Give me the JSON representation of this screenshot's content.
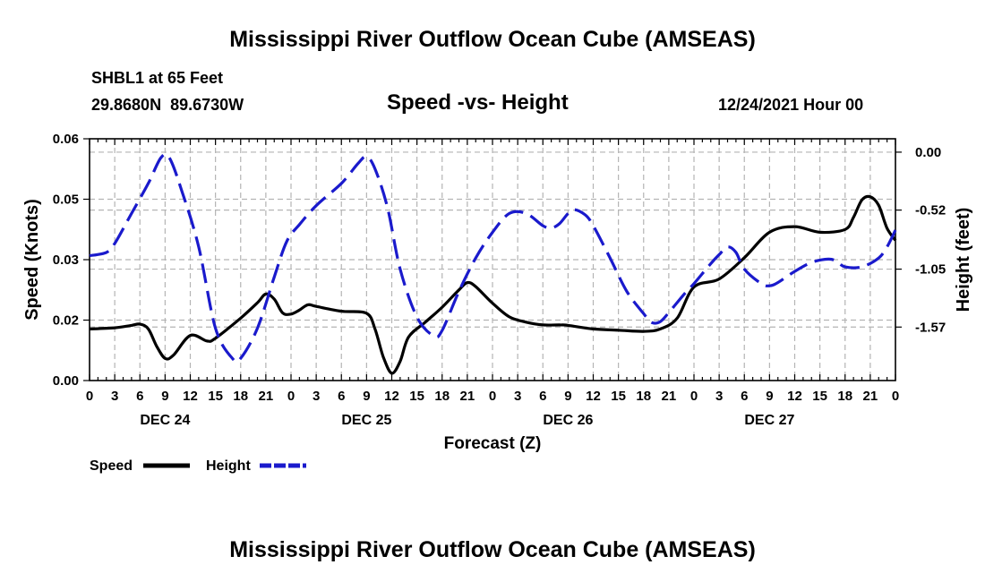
{
  "page": {
    "title": "Mississippi River Outflow Ocean Cube (AMSEAS)",
    "station": "SHBL1 at 65 Feet",
    "coords": "29.8680N  89.6730W",
    "plot_title": "Speed -vs- Height",
    "date": "12/24/2021 Hour 00",
    "bottom_title": "Mississippi River Outflow Ocean Cube (AMSEAS)"
  },
  "legend": {
    "speed_label": "Speed",
    "height_label": "Height"
  },
  "colors": {
    "speed": "#000000",
    "height": "#1a1acc",
    "grid": "#b4b4b4"
  },
  "chart_data": {
    "type": "line",
    "title": "Speed -vs- Height",
    "xlabel": "Forecast (Z)",
    "ylabel_left": "Speed (Knots)",
    "ylabel_right": "Height (feet)",
    "x_range": [
      0,
      96
    ],
    "ylim_left": [
      0.0,
      0.06
    ],
    "ylim_right": [
      -2.05,
      0.12
    ],
    "x_tick_labels": [
      "0",
      "3",
      "6",
      "9",
      "12",
      "15",
      "18",
      "21",
      "0",
      "3",
      "6",
      "9",
      "12",
      "15",
      "18",
      "21",
      "0",
      "3",
      "6",
      "9",
      "12",
      "15",
      "18",
      "21",
      "0",
      "3",
      "6",
      "9",
      "12",
      "15",
      "18",
      "21",
      "0"
    ],
    "day_labels": [
      {
        "hour": 9,
        "label": "DEC 24"
      },
      {
        "hour": 33,
        "label": "DEC 25"
      },
      {
        "hour": 57,
        "label": "DEC 26"
      },
      {
        "hour": 81,
        "label": "DEC 27"
      }
    ],
    "y_ticks_left": [
      {
        "value": 0.0,
        "label": "0.00"
      },
      {
        "value": 0.015,
        "label": "0.02"
      },
      {
        "value": 0.03,
        "label": "0.03"
      },
      {
        "value": 0.045,
        "label": "0.05"
      },
      {
        "value": 0.06,
        "label": "0.06"
      }
    ],
    "y_ticks_right": [
      {
        "value": 0.0,
        "label": "0.00"
      },
      {
        "value": -0.52,
        "label": "-0.52"
      },
      {
        "value": -1.05,
        "label": "-1.05"
      },
      {
        "value": -1.57,
        "label": "-1.57"
      }
    ],
    "grid": true,
    "series": [
      {
        "name": "Speed",
        "axis": "left",
        "style": "solid",
        "points": [
          [
            0,
            0.0128
          ],
          [
            3,
            0.0131
          ],
          [
            5,
            0.0137
          ],
          [
            6,
            0.014
          ],
          [
            7,
            0.0128
          ],
          [
            8,
            0.0085
          ],
          [
            9,
            0.0055
          ],
          [
            10,
            0.0063
          ],
          [
            12,
            0.0112
          ],
          [
            14,
            0.0098
          ],
          [
            15,
            0.0105
          ],
          [
            18,
            0.0155
          ],
          [
            20,
            0.0193
          ],
          [
            21,
            0.0215
          ],
          [
            22,
            0.0202
          ],
          [
            23,
            0.0168
          ],
          [
            24,
            0.0165
          ],
          [
            25,
            0.0175
          ],
          [
            26,
            0.0188
          ],
          [
            27,
            0.0184
          ],
          [
            30,
            0.0172
          ],
          [
            33,
            0.0167
          ],
          [
            34,
            0.0128
          ],
          [
            35,
            0.0058
          ],
          [
            36,
            0.0018
          ],
          [
            37,
            0.0048
          ],
          [
            38,
            0.0108
          ],
          [
            40,
            0.0145
          ],
          [
            42,
            0.0182
          ],
          [
            44,
            0.0225
          ],
          [
            45,
            0.0243
          ],
          [
            46,
            0.0233
          ],
          [
            48,
            0.0192
          ],
          [
            50,
            0.0158
          ],
          [
            52,
            0.0145
          ],
          [
            54,
            0.0138
          ],
          [
            56,
            0.0138
          ],
          [
            57,
            0.0137
          ],
          [
            60,
            0.0128
          ],
          [
            63,
            0.0125
          ],
          [
            66,
            0.0122
          ],
          [
            68,
            0.0128
          ],
          [
            70,
            0.0155
          ],
          [
            72,
            0.0232
          ],
          [
            75,
            0.0252
          ],
          [
            78,
            0.0305
          ],
          [
            81,
            0.0368
          ],
          [
            84,
            0.0382
          ],
          [
            87,
            0.0368
          ],
          [
            90,
            0.0375
          ],
          [
            91,
            0.0405
          ],
          [
            92,
            0.0448
          ],
          [
            93,
            0.0456
          ],
          [
            94,
            0.0435
          ],
          [
            95,
            0.0378
          ],
          [
            96,
            0.0348
          ]
        ]
      },
      {
        "name": "Height",
        "axis": "right",
        "style": "dashed",
        "points": [
          [
            0,
            -0.93
          ],
          [
            2,
            -0.9
          ],
          [
            3,
            -0.82
          ],
          [
            5,
            -0.55
          ],
          [
            7,
            -0.28
          ],
          [
            8.5,
            -0.05
          ],
          [
            9.5,
            -0.05
          ],
          [
            11,
            -0.35
          ],
          [
            13,
            -0.85
          ],
          [
            15,
            -1.58
          ],
          [
            17,
            -1.85
          ],
          [
            18,
            -1.85
          ],
          [
            20,
            -1.58
          ],
          [
            22,
            -1.12
          ],
          [
            23.5,
            -0.8
          ],
          [
            25,
            -0.65
          ],
          [
            27,
            -0.48
          ],
          [
            30,
            -0.28
          ],
          [
            32,
            -0.1
          ],
          [
            33,
            -0.04
          ],
          [
            34,
            -0.15
          ],
          [
            35.5,
            -0.5
          ],
          [
            37,
            -1.05
          ],
          [
            39,
            -1.48
          ],
          [
            41,
            -1.65
          ],
          [
            42,
            -1.6
          ],
          [
            44,
            -1.25
          ],
          [
            46,
            -0.95
          ],
          [
            48,
            -0.72
          ],
          [
            50,
            -0.55
          ],
          [
            52,
            -0.55
          ],
          [
            54,
            -0.66
          ],
          [
            55,
            -0.68
          ],
          [
            56,
            -0.64
          ],
          [
            57.5,
            -0.52
          ],
          [
            59,
            -0.56
          ],
          [
            60,
            -0.66
          ],
          [
            62,
            -0.95
          ],
          [
            64,
            -1.25
          ],
          [
            66,
            -1.45
          ],
          [
            67,
            -1.53
          ],
          [
            68,
            -1.52
          ],
          [
            69,
            -1.44
          ],
          [
            71,
            -1.26
          ],
          [
            72,
            -1.18
          ],
          [
            74,
            -1.0
          ],
          [
            75,
            -0.92
          ],
          [
            76,
            -0.85
          ],
          [
            77,
            -0.9
          ],
          [
            78,
            -1.05
          ],
          [
            80,
            -1.18
          ],
          [
            81,
            -1.2
          ],
          [
            82,
            -1.17
          ],
          [
            84,
            -1.07
          ],
          [
            86,
            -0.99
          ],
          [
            88,
            -0.96
          ],
          [
            89,
            -0.98
          ],
          [
            90,
            -1.03
          ],
          [
            92,
            -1.03
          ],
          [
            94,
            -0.95
          ],
          [
            95,
            -0.85
          ],
          [
            96,
            -0.7
          ]
        ]
      }
    ]
  }
}
